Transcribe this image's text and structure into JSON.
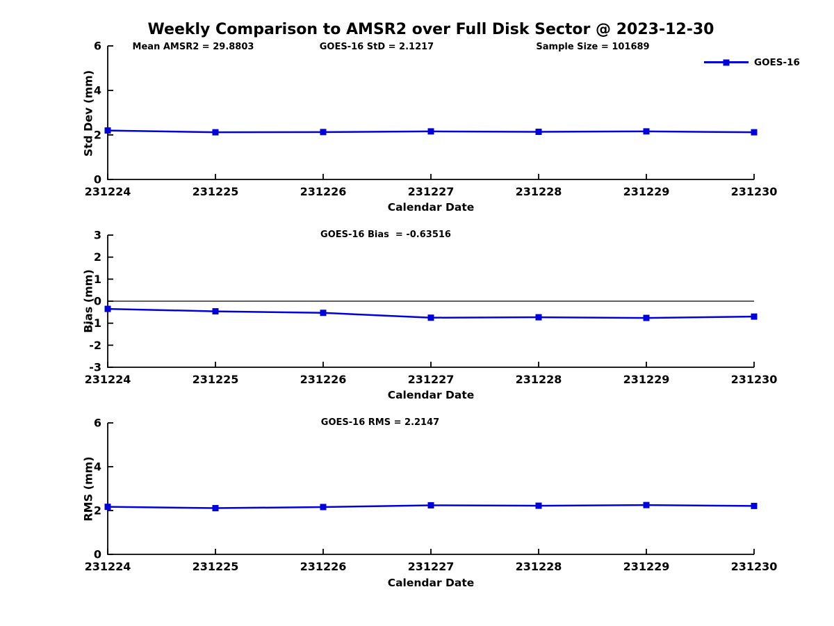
{
  "title": "Weekly Comparison to AMSR2 over Full Disk Sector @ 2023-12-30",
  "legend": {
    "label": "GOES-16",
    "color": "#0000dd"
  },
  "annotations": {
    "mean_amsr2": "Mean AMSR2 = 29.8803",
    "goes16_std": "GOES-16 StD = 2.1217",
    "sample_size": "Sample Size = 101689",
    "goes16_bias": "GOES-16 Bias  = -0.63516",
    "goes16_rms": "GOES-16 RMS = 2.2147"
  },
  "chart_data": [
    {
      "type": "line",
      "name": "std-dev-plot",
      "series_name": "GOES-16",
      "categories": [
        "231224",
        "231225",
        "231226",
        "231227",
        "231228",
        "231229",
        "231230"
      ],
      "values": [
        2.2,
        2.12,
        2.13,
        2.16,
        2.14,
        2.16,
        2.12
      ],
      "xlabel": "Calendar Date",
      "ylabel": "Std Dev (mm)",
      "ylim": [
        0,
        6
      ],
      "yticks": [
        0,
        2,
        4,
        6
      ],
      "zero_line": false,
      "grid": false,
      "line_color": "#0000dd",
      "marker": "square"
    },
    {
      "type": "line",
      "name": "bias-plot",
      "series_name": "GOES-16",
      "categories": [
        "231224",
        "231225",
        "231226",
        "231227",
        "231228",
        "231229",
        "231230"
      ],
      "values": [
        -0.35,
        -0.46,
        -0.53,
        -0.75,
        -0.73,
        -0.76,
        -0.7
      ],
      "xlabel": "Calendar Date",
      "ylabel": "Bias (mm)",
      "ylim": [
        -3,
        3
      ],
      "yticks": [
        -3,
        -2,
        -1,
        0,
        1,
        2,
        3
      ],
      "zero_line": true,
      "grid": false,
      "line_color": "#0000dd",
      "marker": "square"
    },
    {
      "type": "line",
      "name": "rms-plot",
      "series_name": "GOES-16",
      "categories": [
        "231224",
        "231225",
        "231226",
        "231227",
        "231228",
        "231229",
        "231230"
      ],
      "values": [
        2.17,
        2.11,
        2.16,
        2.24,
        2.22,
        2.25,
        2.21
      ],
      "xlabel": "Calendar Date",
      "ylabel": "RMS (mm)",
      "ylim": [
        0,
        6
      ],
      "yticks": [
        0,
        2,
        4,
        6
      ],
      "zero_line": false,
      "grid": false,
      "line_color": "#0000dd",
      "marker": "square"
    }
  ]
}
